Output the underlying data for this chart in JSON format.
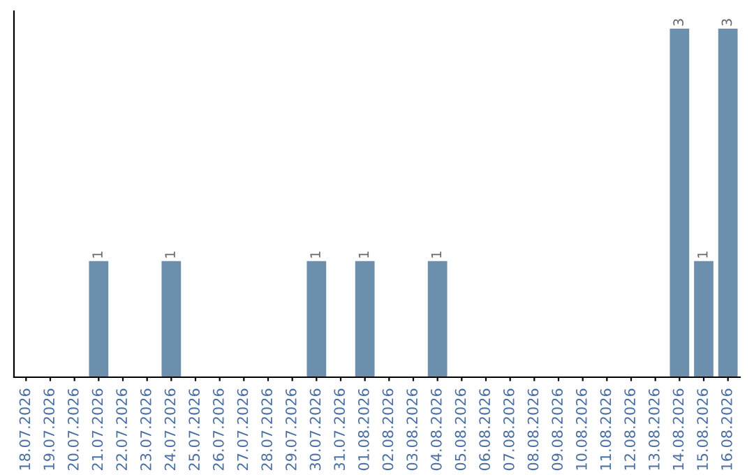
{
  "chart_data": {
    "type": "bar",
    "categories": [
      "18.07.2026",
      "19.07.2026",
      "20.07.2026",
      "21.07.2026",
      "22.07.2026",
      "23.07.2026",
      "24.07.2026",
      "25.07.2026",
      "26.07.2026",
      "27.07.2026",
      "28.07.2026",
      "29.07.2026",
      "30.07.2026",
      "31.07.2026",
      "01.08.2026",
      "02.08.2026",
      "03.08.2026",
      "04.08.2026",
      "05.08.2026",
      "06.08.2026",
      "07.08.2026",
      "08.08.2026",
      "09.08.2026",
      "10.08.2026",
      "11.08.2026",
      "12.08.2026",
      "13.08.2026",
      "14.08.2026",
      "15.08.2026",
      "16.08.2026"
    ],
    "values": [
      0,
      0,
      0,
      1,
      0,
      0,
      1,
      0,
      0,
      0,
      0,
      0,
      1,
      0,
      1,
      0,
      0,
      1,
      0,
      0,
      0,
      0,
      0,
      0,
      0,
      0,
      0,
      3,
      1,
      3
    ],
    "value_labels": [
      null,
      null,
      null,
      "1",
      null,
      null,
      "1",
      null,
      null,
      null,
      null,
      null,
      "1",
      null,
      "1",
      null,
      null,
      "1",
      null,
      null,
      null,
      null,
      null,
      null,
      null,
      null,
      null,
      "3",
      "1",
      "3"
    ],
    "color": "#6d8fae",
    "tick_labels": "x",
    "grid": false,
    "legend": false
  }
}
